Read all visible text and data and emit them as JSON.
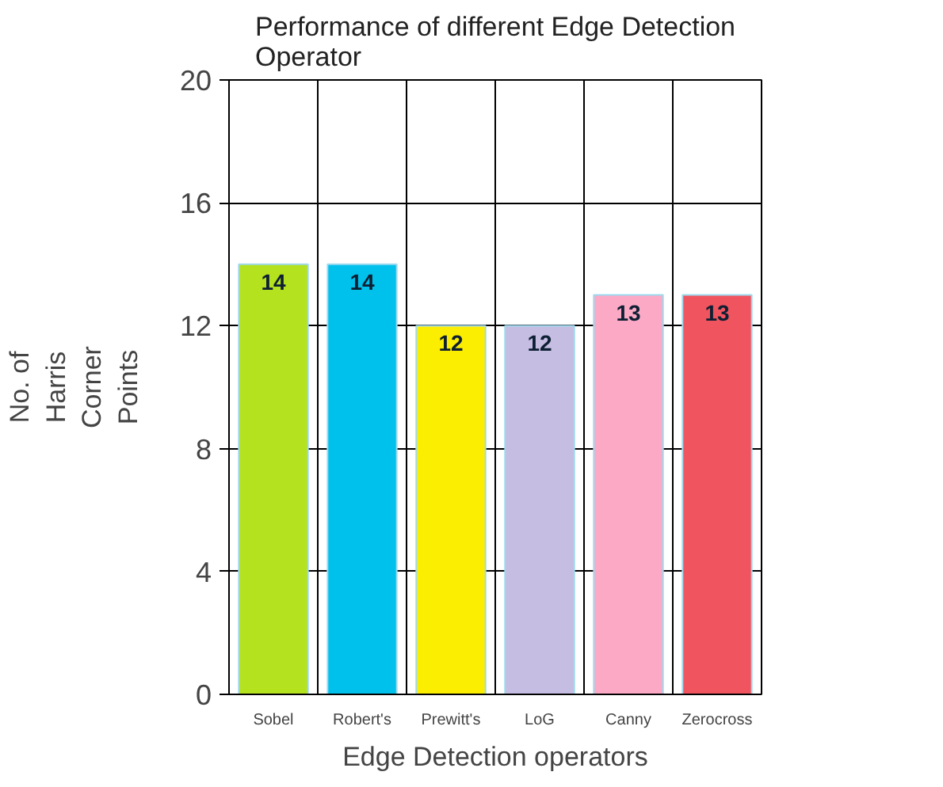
{
  "chart_data": {
    "type": "bar",
    "title": "Performance of different Edge Detection\nOperator",
    "xlabel": "Edge Detection operators",
    "ylabel": "No. of\nHarris\nCorner\nPoints",
    "categories": [
      "Sobel",
      "Robert's",
      "Prewitt's",
      "LoG",
      "Canny",
      "Zerocross"
    ],
    "values": [
      14,
      14,
      12,
      12,
      13,
      13
    ],
    "colors": [
      "#b5e21e",
      "#00c0ec",
      "#fcee00",
      "#c6bde3",
      "#fca9c6",
      "#f0545e"
    ],
    "ylim": [
      0,
      20
    ],
    "yticks": [
      0,
      4,
      8,
      12,
      16,
      20
    ],
    "grid": true,
    "data_labels": true
  }
}
